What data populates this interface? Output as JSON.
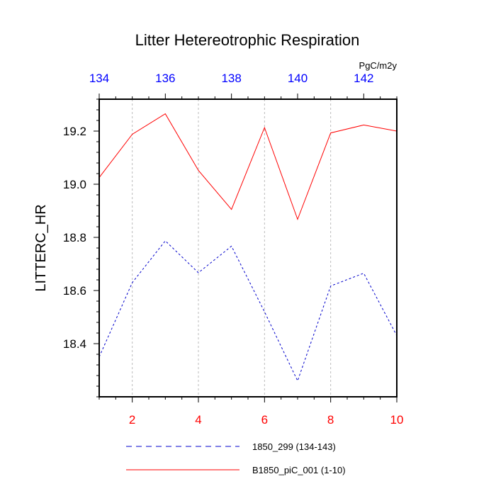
{
  "chart_data": {
    "type": "line",
    "title": "Litter Hetereotrophic Respiration",
    "ylabel": "LITTERC_HR",
    "units": "PgC/m2y",
    "xlim": [
      1,
      10
    ],
    "ylim": [
      18.2,
      19.32
    ],
    "x_ticks": [
      2,
      4,
      6,
      8,
      10
    ],
    "top_xlim": [
      134,
      143
    ],
    "top_ticks": [
      134,
      136,
      138,
      140,
      142
    ],
    "y_ticks": [
      18.4,
      18.6,
      18.8,
      19.0,
      19.2
    ],
    "y_tick_labels": [
      "18.4",
      "18.6",
      "18.8",
      "19.0",
      "19.2"
    ],
    "grid_x": [
      2,
      4,
      6,
      8
    ],
    "colors": {
      "bottom_axis": "#ff0000",
      "top_axis": "#0000ff",
      "series_red": "#ff0000",
      "series_blue": "#0000cc"
    },
    "legend_position": "bottom",
    "x": [
      1,
      2,
      3,
      4,
      5,
      6,
      7,
      8,
      9,
      10
    ],
    "series": [
      {
        "name": "1850_299 (134-143)",
        "style": "dashed",
        "color": "#0000cc",
        "values": [
          18.35,
          18.63,
          18.787,
          18.667,
          18.767,
          18.52,
          18.26,
          18.617,
          18.665,
          18.43
        ]
      },
      {
        "name": "B1850_piC_001 (1-10)",
        "style": "solid",
        "color": "#ff0000",
        "values": [
          19.025,
          19.188,
          19.265,
          19.052,
          18.905,
          19.213,
          18.868,
          19.193,
          19.223,
          19.2
        ]
      }
    ]
  }
}
